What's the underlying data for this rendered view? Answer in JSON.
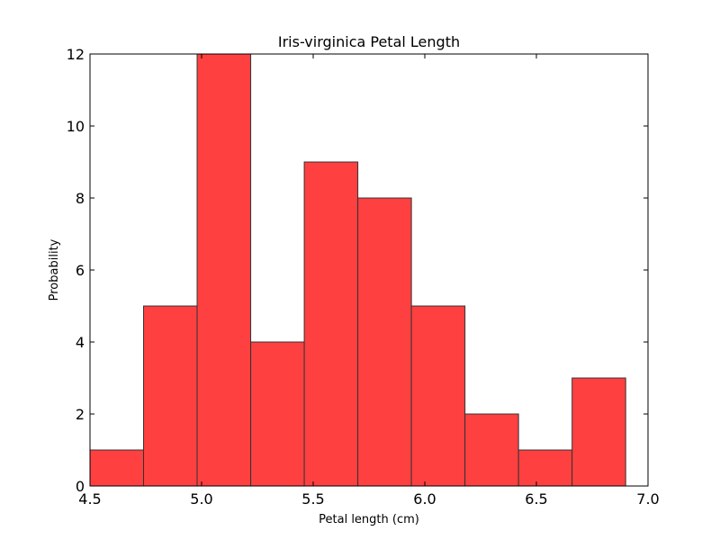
{
  "chart_data": {
    "type": "bar",
    "title": "Iris-virginica Petal Length",
    "xlabel": "Petal length (cm)",
    "ylabel": "Probability",
    "xlim": [
      4.5,
      7.0
    ],
    "ylim": [
      0,
      12
    ],
    "x_ticks": [
      4.5,
      5.0,
      5.5,
      6.0,
      6.5,
      7.0
    ],
    "x_tick_labels": [
      "4.5",
      "5.0",
      "5.5",
      "6.0",
      "6.5",
      "7.0"
    ],
    "y_ticks": [
      0,
      2,
      4,
      6,
      8,
      10,
      12
    ],
    "y_tick_labels": [
      "0",
      "2",
      "4",
      "6",
      "8",
      "10",
      "12"
    ],
    "bins": [
      {
        "start": 4.5,
        "end": 4.74,
        "value": 1
      },
      {
        "start": 4.74,
        "end": 4.98,
        "value": 5
      },
      {
        "start": 4.98,
        "end": 5.22,
        "value": 12
      },
      {
        "start": 5.22,
        "end": 5.46,
        "value": 4
      },
      {
        "start": 5.46,
        "end": 5.7,
        "value": 9
      },
      {
        "start": 5.7,
        "end": 5.94,
        "value": 8
      },
      {
        "start": 5.94,
        "end": 6.18,
        "value": 5
      },
      {
        "start": 6.18,
        "end": 6.42,
        "value": 2
      },
      {
        "start": 6.42,
        "end": 6.66,
        "value": 1
      },
      {
        "start": 6.66,
        "end": 6.9,
        "value": 3
      }
    ],
    "bar_color": "#ff4040",
    "edge_color": "#333333",
    "grid": false,
    "legend": "none"
  }
}
